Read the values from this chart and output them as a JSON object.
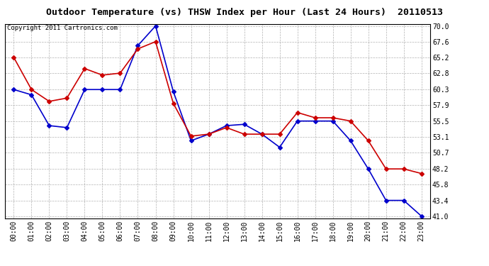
{
  "title": "Outdoor Temperature (vs) THSW Index per Hour (Last 24 Hours)  20110513",
  "copyright_text": "Copyright 2011 Cartronics.com",
  "x_labels": [
    "00:00",
    "01:00",
    "02:00",
    "03:00",
    "04:00",
    "05:00",
    "06:00",
    "07:00",
    "08:00",
    "09:00",
    "10:00",
    "11:00",
    "12:00",
    "13:00",
    "14:00",
    "15:00",
    "16:00",
    "17:00",
    "18:00",
    "19:00",
    "20:00",
    "21:00",
    "22:00",
    "23:00"
  ],
  "temp_data": [
    65.2,
    60.3,
    58.5,
    59.0,
    63.5,
    62.5,
    62.8,
    66.5,
    67.6,
    58.2,
    53.2,
    53.5,
    54.5,
    53.5,
    53.5,
    53.5,
    56.8,
    56.0,
    56.0,
    55.5,
    52.5,
    48.2,
    48.2,
    47.5
  ],
  "thsw_data": [
    60.3,
    59.5,
    54.8,
    54.5,
    60.3,
    60.3,
    60.3,
    67.0,
    70.0,
    60.0,
    52.5,
    53.5,
    54.8,
    55.0,
    53.5,
    51.5,
    55.5,
    55.5,
    55.5,
    52.5,
    48.2,
    43.4,
    43.4,
    41.0
  ],
  "temp_color": "#cc0000",
  "thsw_color": "#0000cc",
  "y_ticks": [
    41.0,
    43.4,
    45.8,
    48.2,
    50.7,
    53.1,
    55.5,
    57.9,
    60.3,
    62.8,
    65.2,
    67.6,
    70.0
  ],
  "y_min": 41.0,
  "y_max": 70.0,
  "background_color": "#ffffff",
  "plot_bg_color": "#ffffff",
  "grid_color": "#aaaaaa",
  "title_fontsize": 9.5,
  "copyright_fontsize": 6.5,
  "tick_fontsize": 7,
  "marker": "D",
  "marker_size": 3,
  "line_width": 1.2
}
